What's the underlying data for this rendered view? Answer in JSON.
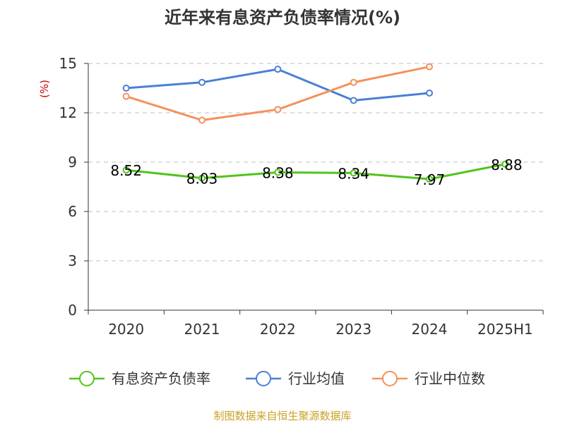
{
  "chart_data": {
    "type": "line",
    "title": "近年来有息资产负债率情况(%)",
    "ylabel": "(%)",
    "categories": [
      "2020",
      "2021",
      "2022",
      "2023",
      "2024",
      "2025H1"
    ],
    "ylim": [
      0,
      15
    ],
    "yticks": [
      "0",
      "3",
      "6",
      "9",
      "12",
      "15"
    ],
    "grid": true,
    "legend_position": "bottom",
    "series": [
      {
        "name": "有息资产负债率",
        "color": "#52c41a",
        "values": [
          8.52,
          8.03,
          8.38,
          8.34,
          7.97,
          8.88
        ],
        "labels": [
          "8.52",
          "8.03",
          "8.38",
          "8.34",
          "7.97",
          "8.88"
        ]
      },
      {
        "name": "行业均值",
        "color": "#4a7fd6",
        "values": [
          13.5,
          13.85,
          14.65,
          12.75,
          13.2,
          null
        ]
      },
      {
        "name": "行业中位数",
        "color": "#f4915c",
        "values": [
          13.0,
          11.55,
          12.2,
          13.85,
          14.8,
          null
        ]
      }
    ]
  },
  "source": "制图数据来自恒生聚源数据库"
}
